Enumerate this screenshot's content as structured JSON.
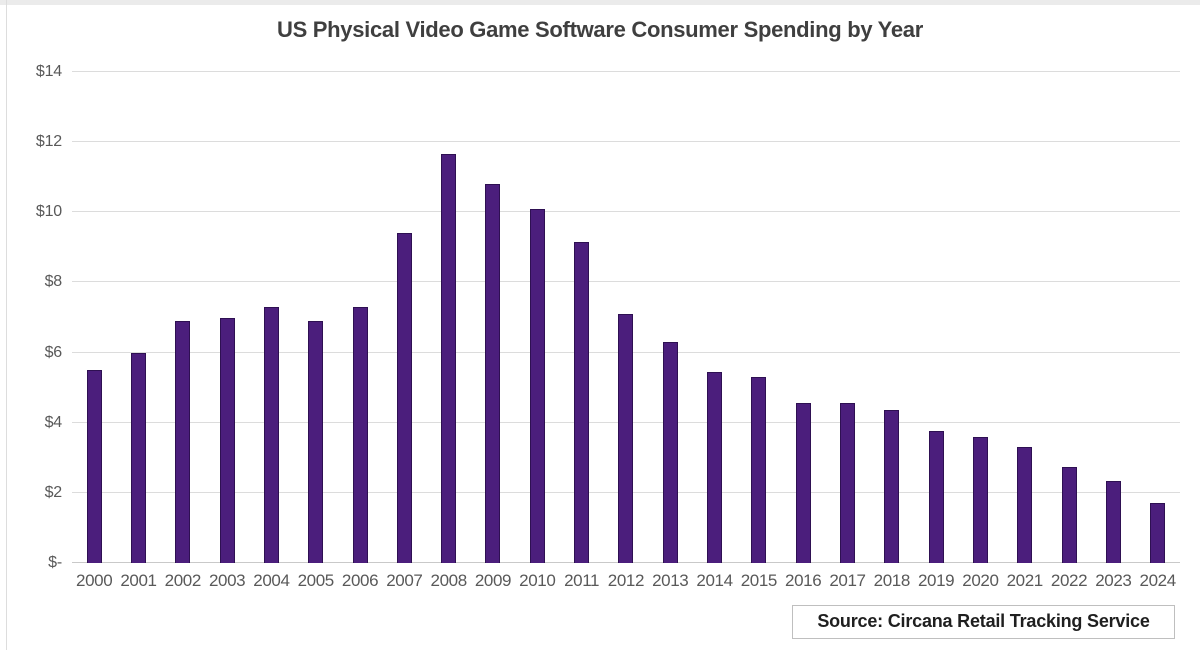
{
  "title": "US Physical Video Game Software Consumer Spending by Year",
  "source_label": "Source: Circana Retail Tracking Service",
  "colors": {
    "bar_fill": "#4b1e7c",
    "bar_border": "#2e1052",
    "gridline": "#dcdcdc",
    "baseline": "#c9c9c9",
    "title_text": "#3f3f3f",
    "axis_text": "#595959",
    "source_text": "#1f1f1f",
    "source_border": "#bfbfbf"
  },
  "chart_data": {
    "type": "bar",
    "title": "US Physical Video Game Software Consumer Spending by Year",
    "xlabel": "",
    "ylabel": "",
    "ylim": [
      0,
      14
    ],
    "grid": true,
    "legend": "none",
    "categories": [
      "2000",
      "2001",
      "2002",
      "2003",
      "2004",
      "2005",
      "2006",
      "2007",
      "2008",
      "2009",
      "2010",
      "2011",
      "2012",
      "2013",
      "2014",
      "2015",
      "2016",
      "2017",
      "2018",
      "2019",
      "2020",
      "2021",
      "2022",
      "2023",
      "2024"
    ],
    "values": [
      5.5,
      6.0,
      6.9,
      7.0,
      7.3,
      6.9,
      7.3,
      9.4,
      11.65,
      10.8,
      10.1,
      9.15,
      7.1,
      6.3,
      5.45,
      5.3,
      4.55,
      4.55,
      4.35,
      3.75,
      3.6,
      3.3,
      2.75,
      2.35,
      1.7
    ],
    "yticks": [
      {
        "value": 0,
        "label": "$-"
      },
      {
        "value": 2,
        "label": "$2"
      },
      {
        "value": 4,
        "label": "$4"
      },
      {
        "value": 6,
        "label": "$6"
      },
      {
        "value": 8,
        "label": "$8"
      },
      {
        "value": 10,
        "label": "$10"
      },
      {
        "value": 12,
        "label": "$12"
      },
      {
        "value": 14,
        "label": "$14"
      }
    ]
  }
}
